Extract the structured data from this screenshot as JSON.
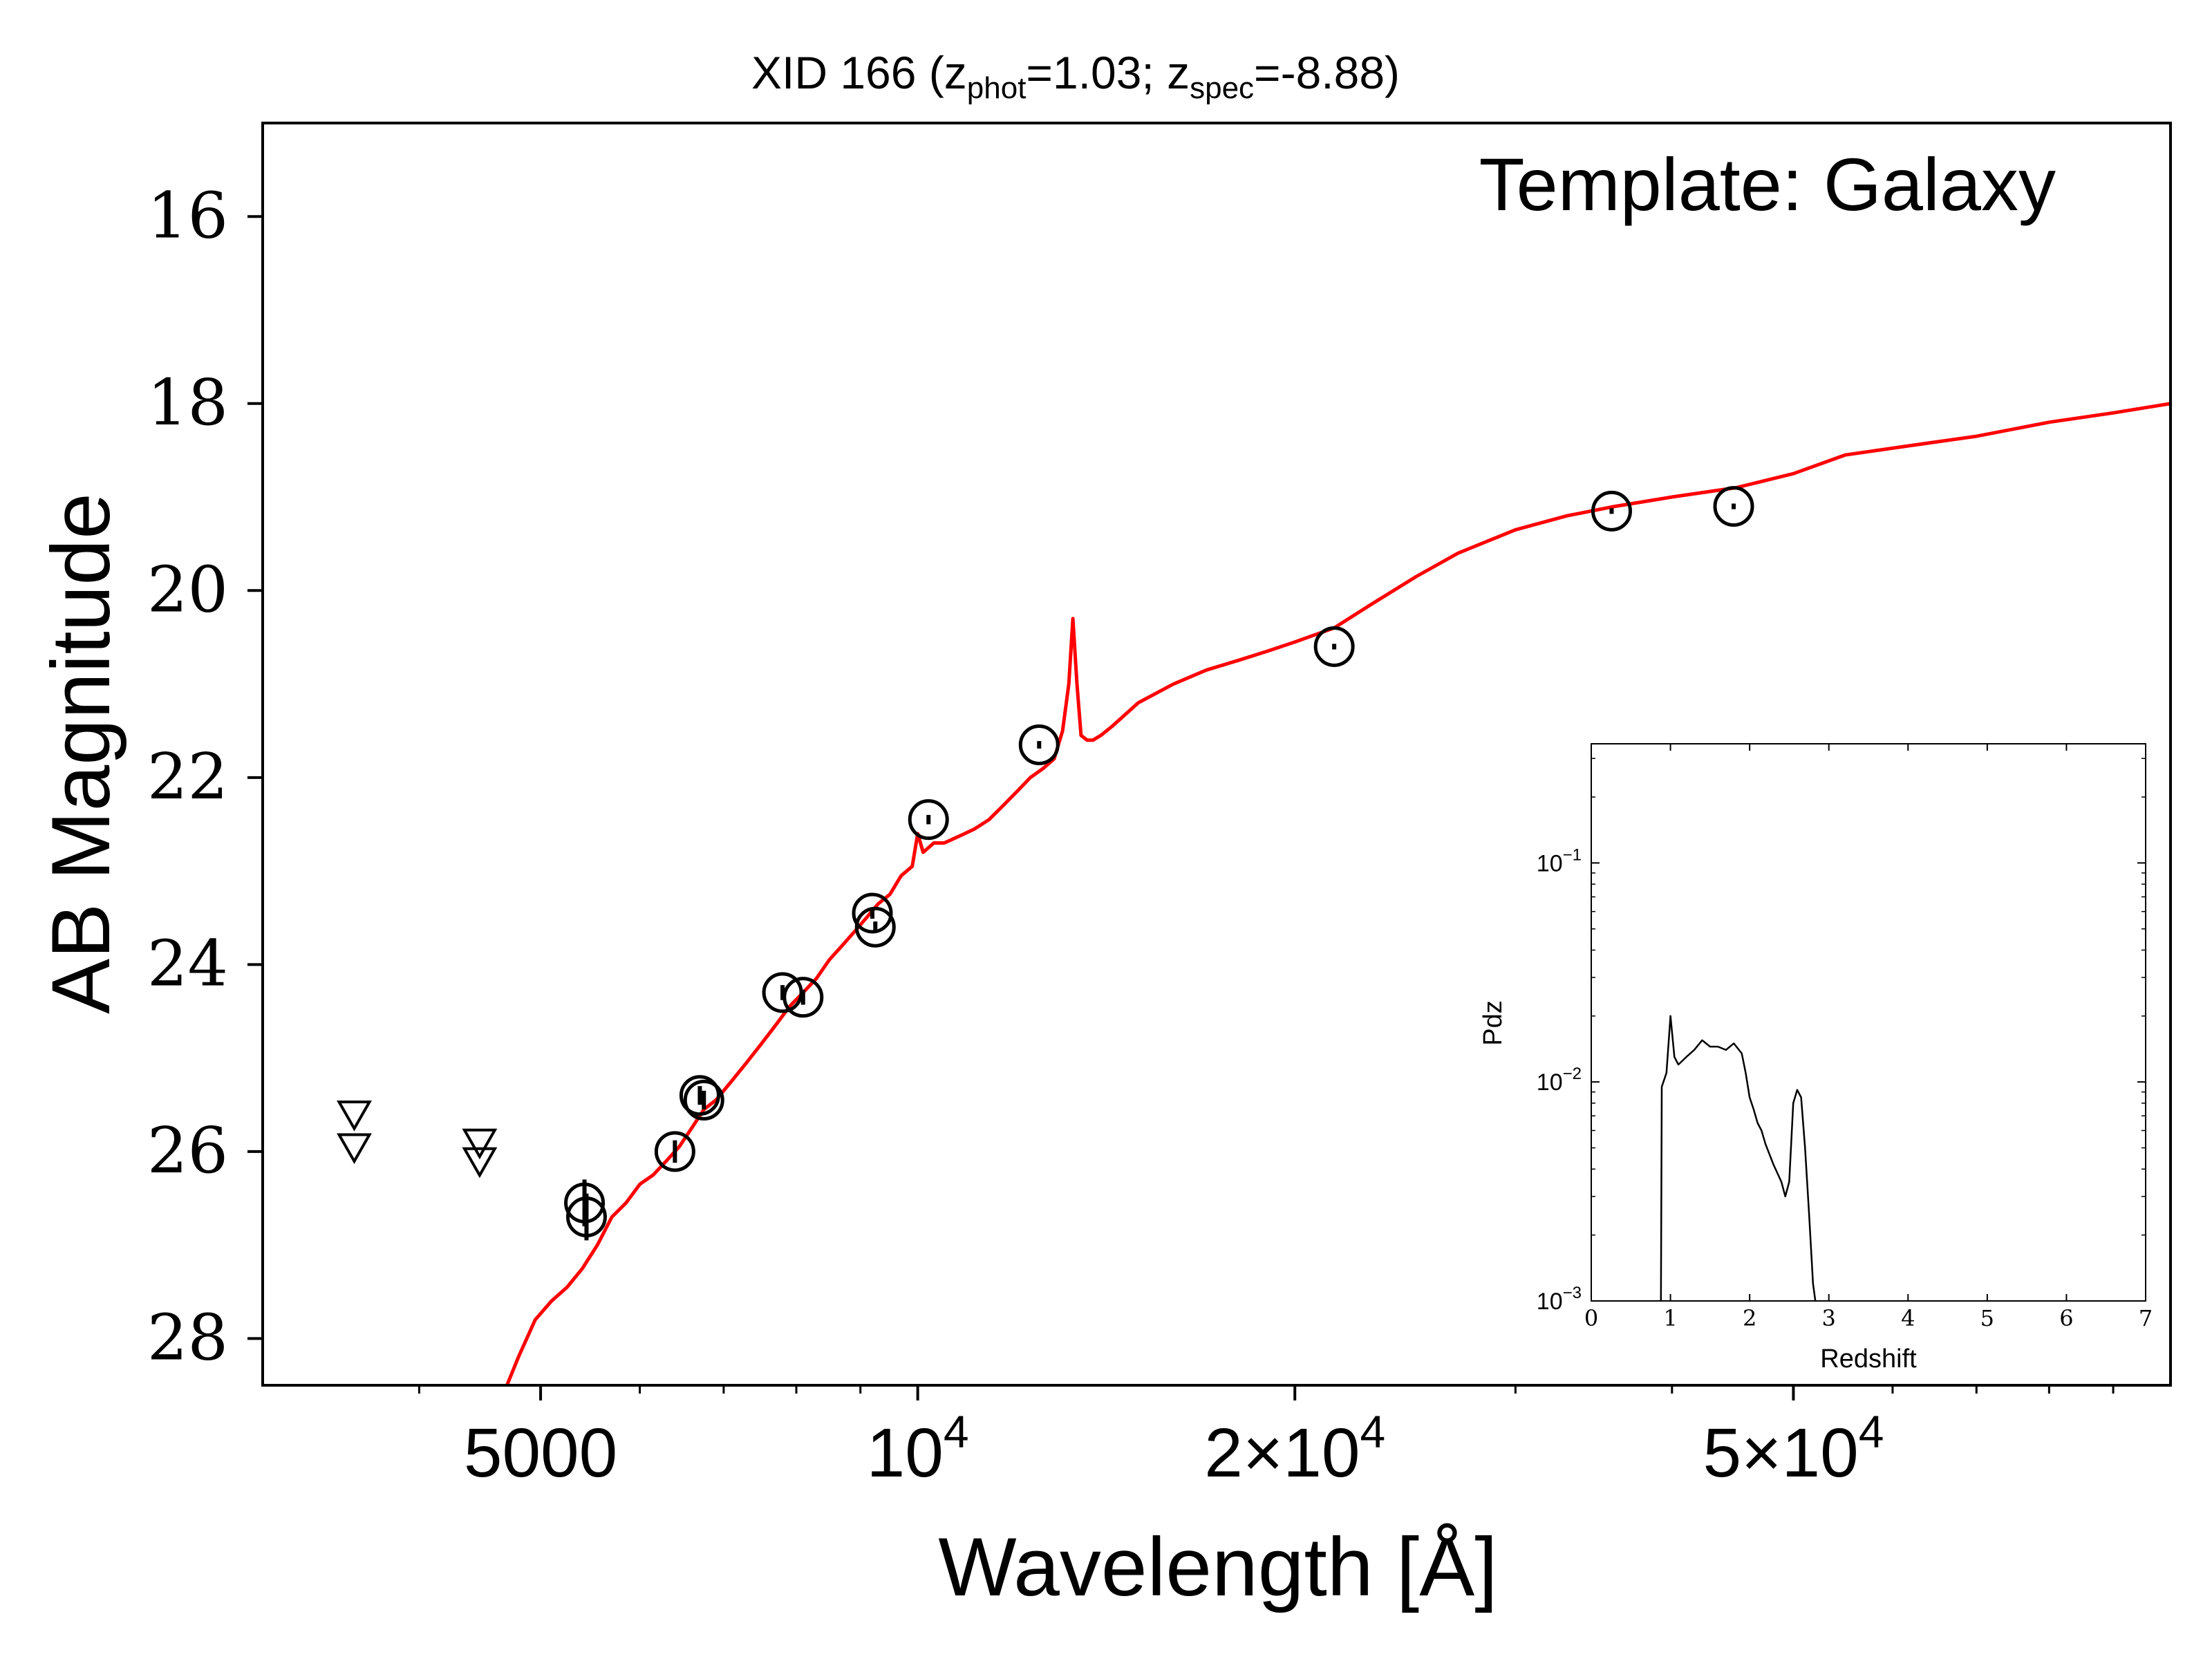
{
  "chart_data": [
    {
      "id": "sed",
      "type": "scatter",
      "title": {
        "prefix": "XID 166 (z",
        "sub1": "phot",
        "mid": "=1.03; z",
        "sub2": "spec",
        "suffix": "=-8.88)"
      },
      "xlabel": "Wavelength [Å]",
      "ylabel": "AB Magnitude",
      "annotation": "Template: Galaxy",
      "x_scale": "log",
      "xlim": [
        3000,
        100000
      ],
      "ylim": [
        28.5,
        15.0
      ],
      "y_inverted": true,
      "x_ticks": [
        {
          "value": 5000,
          "label": "5000"
        },
        {
          "value": 10000,
          "label": "10",
          "sup": "4"
        },
        {
          "value": 20000,
          "label": "2×10",
          "sup": "4"
        },
        {
          "value": 50000,
          "label": "5×10",
          "sup": "4"
        }
      ],
      "y_ticks": [
        16,
        18,
        20,
        22,
        24,
        26,
        28
      ],
      "colors": {
        "template": "#ff0000",
        "points": "#000000"
      },
      "detections": [
        {
          "x": 5420,
          "y": 26.55,
          "yerr": 0.25
        },
        {
          "x": 5440,
          "y": 26.7,
          "yerr": 0.25
        },
        {
          "x": 6400,
          "y": 26.0,
          "yerr": 0.12
        },
        {
          "x": 6700,
          "y": 25.4,
          "yerr": 0.1
        },
        {
          "x": 6750,
          "y": 25.45,
          "yerr": 0.1
        },
        {
          "x": 7800,
          "y": 24.3,
          "yerr": 0.08
        },
        {
          "x": 8100,
          "y": 24.35,
          "yerr": 0.08
        },
        {
          "x": 9200,
          "y": 23.45,
          "yerr": 0.06
        },
        {
          "x": 9250,
          "y": 23.6,
          "yerr": 0.06
        },
        {
          "x": 10200,
          "y": 22.45,
          "yerr": 0.05
        },
        {
          "x": 12500,
          "y": 21.65,
          "yerr": 0.04
        },
        {
          "x": 21500,
          "y": 20.6,
          "yerr": 0.03
        },
        {
          "x": 35800,
          "y": 19.15,
          "yerr": 0.03
        },
        {
          "x": 44800,
          "y": 19.1,
          "yerr": 0.03
        }
      ],
      "upper_limits": [
        {
          "x": 3550,
          "y": 25.6
        },
        {
          "x": 3550,
          "y": 25.95
        },
        {
          "x": 4470,
          "y": 25.9
        },
        {
          "x": 4470,
          "y": 26.1
        }
      ],
      "template": {
        "x": [
          4700,
          4800,
          4950,
          5100,
          5250,
          5400,
          5550,
          5700,
          5850,
          6000,
          6150,
          6300,
          6450,
          6600,
          6750,
          6900,
          7100,
          7300,
          7500,
          7700,
          7900,
          8100,
          8300,
          8500,
          8700,
          8900,
          9100,
          9300,
          9500,
          9700,
          9900,
          10000,
          10100,
          10200,
          10300,
          10500,
          10700,
          10900,
          11100,
          11400,
          11700,
          12000,
          12300,
          12600,
          12850,
          13050,
          13200,
          13300,
          13400,
          13500,
          13650,
          13800,
          14000,
          14300,
          15000,
          16000,
          17000,
          18000,
          19000,
          20000,
          21500,
          23000,
          25000,
          27000,
          30000,
          33000,
          36000,
          40000,
          45000,
          50000,
          55000,
          62000,
          70000,
          80000,
          90000,
          100000
        ],
        "y": [
          28.5,
          28.2,
          27.8,
          27.6,
          27.45,
          27.25,
          27.0,
          26.7,
          26.55,
          26.35,
          26.25,
          26.1,
          25.95,
          25.75,
          25.55,
          25.45,
          25.25,
          25.05,
          24.85,
          24.65,
          24.45,
          24.3,
          24.15,
          23.95,
          23.8,
          23.65,
          23.5,
          23.35,
          23.25,
          23.05,
          22.95,
          22.6,
          22.8,
          22.75,
          22.7,
          22.7,
          22.65,
          22.6,
          22.55,
          22.45,
          22.3,
          22.15,
          22.0,
          21.9,
          21.8,
          21.5,
          21.0,
          20.3,
          21.0,
          21.55,
          21.6,
          21.6,
          21.55,
          21.45,
          21.2,
          21.0,
          20.85,
          20.75,
          20.65,
          20.55,
          20.4,
          20.15,
          19.85,
          19.6,
          19.35,
          19.2,
          19.1,
          19.0,
          18.9,
          18.75,
          18.55,
          18.45,
          18.35,
          18.2,
          18.1,
          18.0
        ]
      }
    },
    {
      "id": "pdz-inset",
      "type": "line",
      "xlabel": "Redshift",
      "ylabel": "Pdz",
      "y_scale": "log",
      "xlim": [
        0,
        7
      ],
      "ylim": [
        0.001,
        0.35
      ],
      "x_ticks": [
        0,
        1,
        2,
        3,
        4,
        5,
        6,
        7
      ],
      "y_ticks": [
        {
          "value": 0.1,
          "base": "10",
          "exp": "−1"
        },
        {
          "value": 0.01,
          "base": "10",
          "exp": "−2"
        },
        {
          "value": 0.001,
          "base": "10",
          "exp": "−3"
        }
      ],
      "x": [
        0.88,
        0.89,
        0.95,
        1.0,
        1.05,
        1.1,
        1.2,
        1.3,
        1.4,
        1.5,
        1.6,
        1.7,
        1.8,
        1.9,
        1.95,
        2.0,
        2.05,
        2.1,
        2.15,
        2.2,
        2.3,
        2.4,
        2.45,
        2.5,
        2.55,
        2.6,
        2.65,
        2.7,
        2.75,
        2.8,
        2.83
      ],
      "y": [
        0.001,
        0.0095,
        0.011,
        0.02,
        0.013,
        0.012,
        0.013,
        0.014,
        0.0155,
        0.0145,
        0.0145,
        0.014,
        0.015,
        0.0135,
        0.011,
        0.0085,
        0.0075,
        0.0065,
        0.006,
        0.0052,
        0.0042,
        0.0035,
        0.003,
        0.0035,
        0.008,
        0.0092,
        0.0085,
        0.005,
        0.0025,
        0.0012,
        0.001
      ],
      "colors": {
        "line": "#000000"
      }
    }
  ]
}
